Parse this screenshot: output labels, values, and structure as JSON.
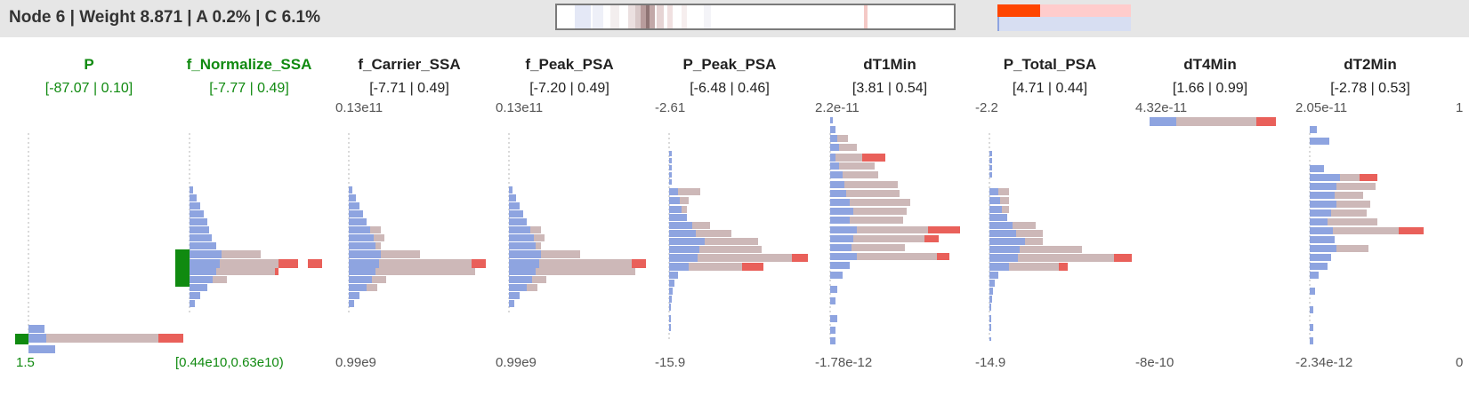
{
  "header": {
    "title": "Node 6 | Weight 8.871 | A 0.2% | C 6.1%"
  },
  "colors": {
    "selected": "#108a10",
    "blue": "#8ea4e0",
    "grey": "#cdb8b8",
    "red": "#e9605a",
    "mini_red": "#ff4500",
    "mini_pink": "#ffcccc",
    "mini_lavender": "#d7def2"
  },
  "columns": [
    {
      "name": "P",
      "range": "[-87.07 | 0.10]",
      "axis_top": "",
      "axis_bottom": "1.5",
      "selected": true
    },
    {
      "name": "f_Normalize_SSA",
      "range": "[-7.77 | 0.49]",
      "axis_top": "",
      "axis_bottom": "[0.44e10,0.63e10)",
      "selected": true
    },
    {
      "name": "f_Carrier_SSA",
      "range": "[-7.71 | 0.49]",
      "axis_top": "0.13e11",
      "axis_bottom": "0.99e9",
      "selected": false
    },
    {
      "name": "f_Peak_PSA",
      "range": "[-7.20 | 0.49]",
      "axis_top": "0.13e11",
      "axis_bottom": "0.99e9",
      "selected": false
    },
    {
      "name": "P_Peak_PSA",
      "range": "[-6.48 | 0.46]",
      "axis_top": "-2.61",
      "axis_bottom": "-15.9",
      "selected": false
    },
    {
      "name": "dT1Min",
      "range": "[3.81 | 0.54]",
      "axis_top": "2.2e-11",
      "axis_bottom": "-1.78e-12",
      "selected": false
    },
    {
      "name": "P_Total_PSA",
      "range": "[4.71 | 0.44]",
      "axis_top": "-2.2",
      "axis_bottom": "-14.9",
      "selected": false
    },
    {
      "name": "dT4Min",
      "range": "[1.66 | 0.99]",
      "axis_top": "4.32e-11",
      "axis_bottom": "-8e-10",
      "selected": false
    },
    {
      "name": "dT2Min",
      "range": "[-2.78 | 0.53]",
      "axis_top": "2.05e-11",
      "axis_bottom": "-2.34e-12",
      "selected": false
    },
    {
      "name": "",
      "range": "",
      "axis_top": "1",
      "axis_bottom": "0",
      "selected": false
    }
  ]
}
